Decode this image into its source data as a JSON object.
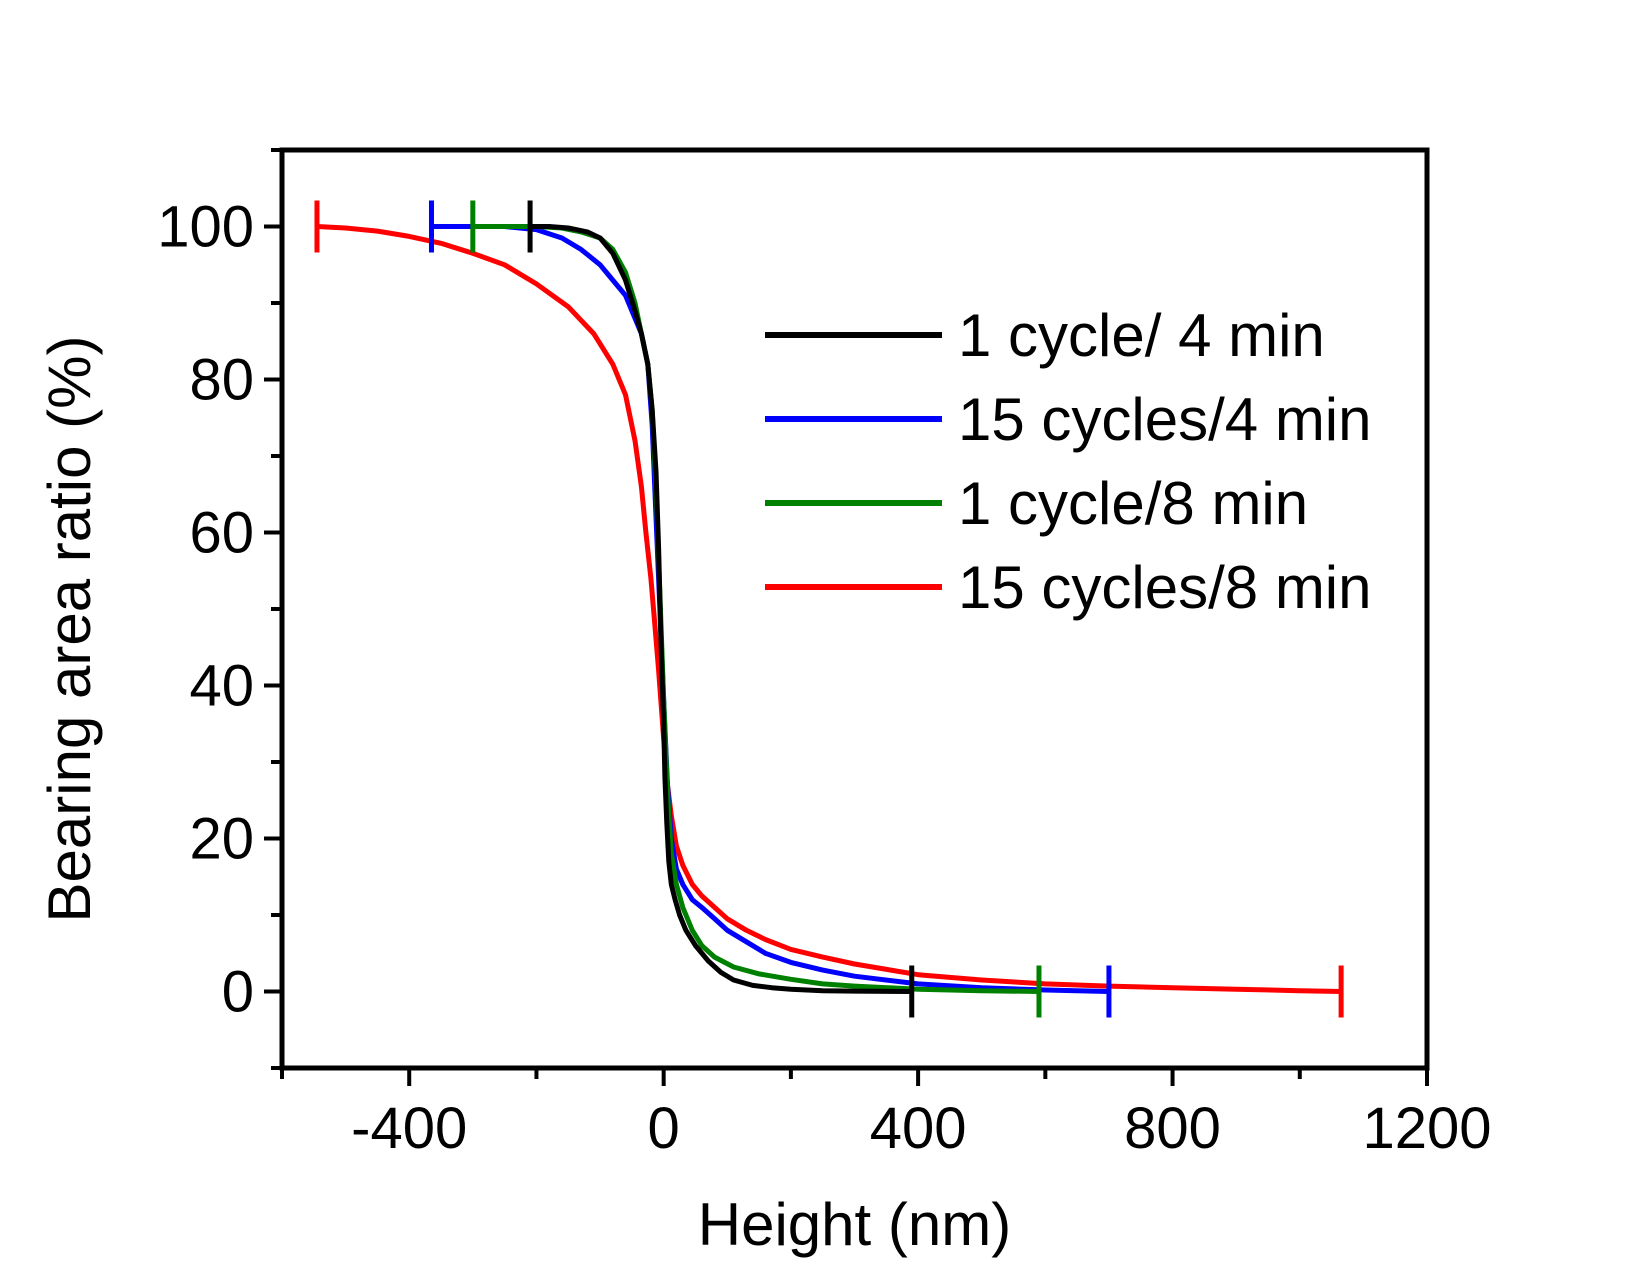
{
  "chart_data": {
    "type": "line",
    "title": "",
    "xlabel": "Height (nm)",
    "ylabel": "Bearing area ratio (%)",
    "xlim": [
      -600,
      1200
    ],
    "ylim": [
      -10,
      110
    ],
    "xticks": [
      -400,
      0,
      400,
      800,
      1200
    ],
    "xticks_minor": [
      -600,
      -200,
      200,
      600,
      1000
    ],
    "yticks": [
      0,
      20,
      40,
      60,
      80,
      100
    ],
    "yticks_minor": [
      -10,
      10,
      30,
      50,
      70,
      90,
      110
    ],
    "grid": false,
    "legend_position": "right",
    "series": [
      {
        "name": "1 cycle/ 4 min",
        "color": "#000000",
        "x": [
          -210,
          -180,
          -150,
          -120,
          -100,
          -80,
          -60,
          -45,
          -35,
          -25,
          -18,
          -12,
          -8,
          -5,
          -2,
          0,
          2,
          5,
          8,
          12,
          18,
          25,
          35,
          50,
          70,
          90,
          110,
          140,
          170,
          200,
          250,
          300,
          390
        ],
        "y": [
          100,
          100,
          99.8,
          99.3,
          98.5,
          96.5,
          93,
          89,
          86,
          82,
          76,
          68,
          58,
          48,
          40,
          35,
          28,
          22,
          17,
          14,
          12,
          10,
          8,
          6,
          4,
          2.5,
          1.5,
          0.8,
          0.5,
          0.3,
          0.1,
          0.05,
          0
        ]
      },
      {
        "name": "15 cycles/4 min",
        "color": "#0000ff",
        "x": [
          -365,
          -300,
          -250,
          -200,
          -160,
          -130,
          -100,
          -80,
          -60,
          -45,
          -35,
          -25,
          -18,
          -12,
          -6,
          0,
          6,
          12,
          20,
          30,
          45,
          60,
          80,
          100,
          130,
          160,
          200,
          250,
          300,
          400,
          500,
          600,
          700
        ],
        "y": [
          100,
          100,
          100,
          99.6,
          98.5,
          97,
          95,
          93,
          91,
          88,
          86,
          82,
          74,
          62,
          50,
          38,
          27,
          20,
          16,
          14,
          12,
          11,
          9.5,
          8,
          6.5,
          5,
          3.8,
          2.8,
          2,
          1,
          0.5,
          0.2,
          0
        ]
      },
      {
        "name": "1 cycle/8 min",
        "color": "#008000",
        "x": [
          -300,
          -250,
          -200,
          -160,
          -130,
          -100,
          -80,
          -60,
          -45,
          -35,
          -25,
          -18,
          -12,
          -6,
          0,
          6,
          12,
          20,
          30,
          45,
          60,
          80,
          110,
          150,
          200,
          250,
          300,
          400,
          500,
          590
        ],
        "y": [
          100,
          100,
          100,
          99.8,
          99.3,
          98.5,
          97,
          94,
          90,
          86,
          82,
          76,
          66,
          52,
          38,
          26,
          18,
          14,
          11,
          8,
          6,
          4.5,
          3.2,
          2.3,
          1.6,
          1,
          0.7,
          0.3,
          0.1,
          0
        ]
      },
      {
        "name": "15 cycles/8 min",
        "color": "#ff0000",
        "x": [
          -545,
          -500,
          -450,
          -400,
          -350,
          -300,
          -250,
          -200,
          -150,
          -110,
          -80,
          -60,
          -45,
          -35,
          -28,
          -20,
          -14,
          -8,
          0,
          6,
          12,
          20,
          30,
          45,
          60,
          80,
          100,
          130,
          160,
          200,
          250,
          300,
          400,
          500,
          600,
          700,
          800,
          900,
          1000,
          1065
        ],
        "y": [
          100,
          99.8,
          99.4,
          98.7,
          97.8,
          96.5,
          95,
          92.5,
          89.5,
          86,
          82,
          78,
          72,
          66,
          60,
          54,
          48,
          42,
          33,
          27,
          23,
          19,
          16.5,
          14,
          12.5,
          11,
          9.5,
          8,
          6.8,
          5.5,
          4.5,
          3.6,
          2.2,
          1.5,
          1,
          0.7,
          0.5,
          0.3,
          0.1,
          0
        ]
      }
    ],
    "markers": [
      {
        "series": 0,
        "x": [
          -210,
          390
        ]
      },
      {
        "series": 1,
        "x": [
          -365,
          700
        ]
      },
      {
        "series": 2,
        "x": [
          -300,
          590
        ]
      },
      {
        "series": 3,
        "x": [
          -545,
          1065
        ]
      }
    ]
  }
}
